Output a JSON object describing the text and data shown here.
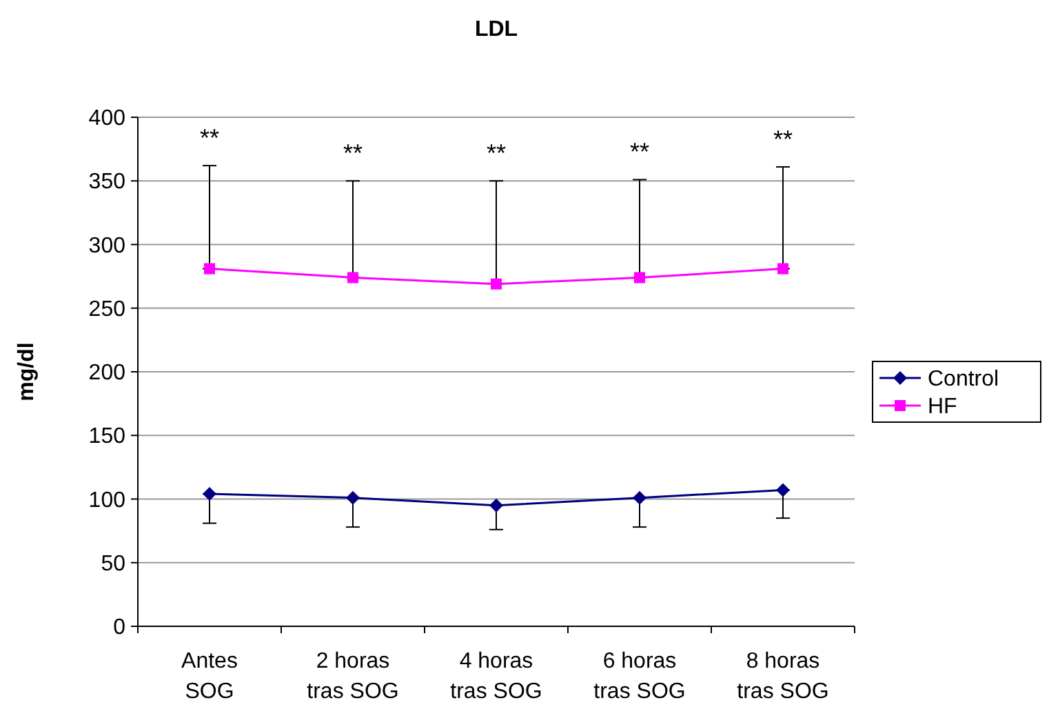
{
  "chart_data": {
    "type": "line",
    "title": "LDL",
    "ylabel": "mg/dl",
    "categories": [
      "Antes SOG",
      "2 horas tras SOG",
      "4 horas tras SOG",
      "6 horas tras SOG",
      "8 horas tras SOG"
    ],
    "series": [
      {
        "name": "Control",
        "color": "#000080",
        "marker": "diamond",
        "values": [
          104,
          101,
          95,
          101,
          107
        ],
        "errors": [
          [
            81,
            104
          ],
          [
            78,
            101
          ],
          [
            76,
            95
          ],
          [
            78,
            101
          ],
          [
            85,
            107
          ]
        ]
      },
      {
        "name": "HF",
        "color": "#ff00ff",
        "marker": "square",
        "values": [
          281,
          274,
          269,
          274,
          281
        ],
        "errors": [
          [
            281,
            362
          ],
          [
            274,
            350
          ],
          [
            269,
            350
          ],
          [
            274,
            351
          ],
          [
            281,
            361
          ]
        ]
      }
    ],
    "ylim": [
      0,
      400
    ],
    "yticks": [
      0,
      50,
      100,
      150,
      200,
      250,
      300,
      350,
      400
    ],
    "grid": "y",
    "legend": "right",
    "line_style": "solid",
    "annotations": [
      "**",
      "**",
      "**",
      "**",
      "**"
    ]
  }
}
